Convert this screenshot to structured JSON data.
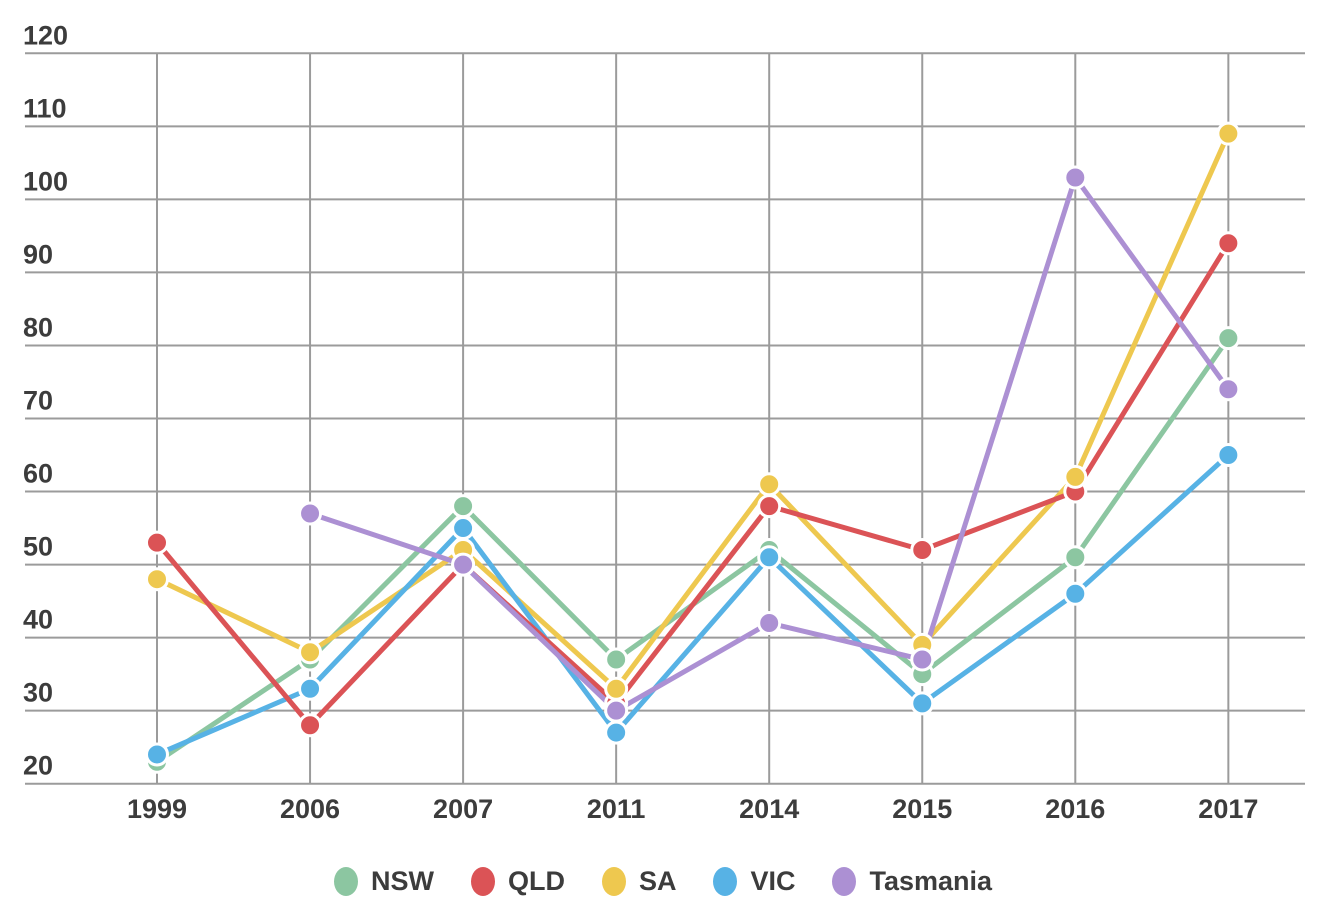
{
  "chart_data": {
    "type": "line",
    "categories": [
      "1999",
      "2006",
      "2007",
      "2011",
      "2014",
      "2015",
      "2016",
      "2017"
    ],
    "series": [
      {
        "name": "NSW",
        "color": "#8CC6A1",
        "values": [
          23,
          37,
          58,
          37,
          52,
          35,
          51,
          81
        ]
      },
      {
        "name": "QLD",
        "color": "#DB5356",
        "values": [
          53,
          28,
          50,
          31,
          58,
          52,
          60,
          94
        ]
      },
      {
        "name": "SA",
        "color": "#EEC84F",
        "values": [
          48,
          38,
          52,
          33,
          61,
          39,
          62,
          109
        ]
      },
      {
        "name": "VIC",
        "color": "#57B2E5",
        "values": [
          24,
          33,
          55,
          27,
          51,
          31,
          46,
          65
        ]
      },
      {
        "name": "Tasmania",
        "color": "#AC90D3",
        "values": [
          null,
          57,
          50,
          30,
          42,
          37,
          103,
          74
        ]
      }
    ],
    "y_ticks": [
      20,
      30,
      40,
      50,
      60,
      70,
      80,
      90,
      100,
      110,
      120
    ],
    "ylim": [
      20,
      120
    ],
    "grid": true,
    "legend_position": "bottom",
    "legend_labels": [
      "NSW",
      "QLD",
      "SA",
      "VIC",
      "Tasmania"
    ]
  },
  "styles": {
    "grid_color": "#9b9b9b",
    "tick_color": "#3c3c3c",
    "point_ring_color": "#ffffff"
  }
}
